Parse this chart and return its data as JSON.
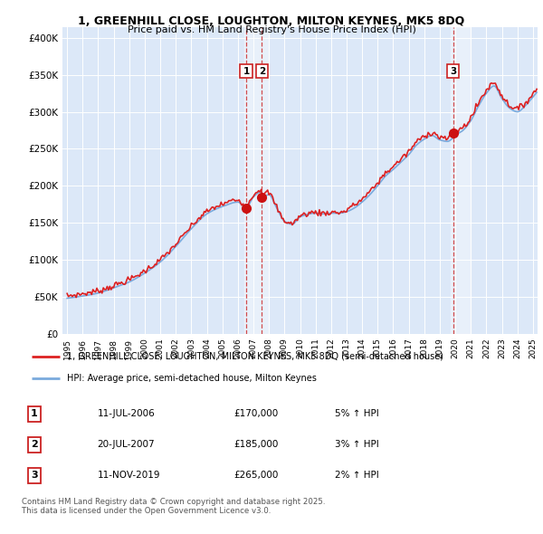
{
  "title_line1": "1, GREENHILL CLOSE, LOUGHTON, MILTON KEYNES, MK5 8DQ",
  "title_line2": "Price paid vs. HM Land Registry's House Price Index (HPI)",
  "bg_color": "#ffffff",
  "plot_bg_color": "#dce8f8",
  "highlight_color": "#c8d8ee",
  "ylabel_ticks": [
    "£0",
    "£50K",
    "£100K",
    "£150K",
    "£200K",
    "£250K",
    "£300K",
    "£350K",
    "£400K"
  ],
  "ytick_values": [
    0,
    50000,
    100000,
    150000,
    200000,
    250000,
    300000,
    350000,
    400000
  ],
  "ylim": [
    0,
    415000
  ],
  "xlim_start": 1994.7,
  "xlim_end": 2025.3,
  "xtick_years": [
    1995,
    1996,
    1997,
    1998,
    1999,
    2000,
    2001,
    2002,
    2003,
    2004,
    2005,
    2006,
    2007,
    2008,
    2009,
    2010,
    2011,
    2012,
    2013,
    2014,
    2015,
    2016,
    2017,
    2018,
    2019,
    2020,
    2021,
    2022,
    2023,
    2024,
    2025
  ],
  "hpi_color": "#7aaadd",
  "price_color": "#dd2222",
  "marker_color": "#cc1111",
  "vline_color": "#cc2222",
  "transactions": [
    {
      "id": 1,
      "date": 2006.53,
      "price": 170000,
      "label": "1"
    },
    {
      "id": 2,
      "date": 2007.55,
      "price": 185000,
      "label": "2"
    },
    {
      "id": 3,
      "date": 2019.87,
      "price": 265000,
      "label": "3"
    }
  ],
  "legend_label_red": "1, GREENHILL CLOSE, LOUGHTON, MILTON KEYNES, MK5 8DQ (semi-detached house)",
  "legend_label_blue": "HPI: Average price, semi-detached house, Milton Keynes",
  "footer_text": "Contains HM Land Registry data © Crown copyright and database right 2025.\nThis data is licensed under the Open Government Licence v3.0.",
  "table_data": [
    {
      "num": "1",
      "date": "11-JUL-2006",
      "price": "£170,000",
      "change": "5% ↑ HPI"
    },
    {
      "num": "2",
      "date": "20-JUL-2007",
      "price": "£185,000",
      "change": "3% ↑ HPI"
    },
    {
      "num": "3",
      "date": "11-NOV-2019",
      "price": "£265,000",
      "change": "2% ↑ HPI"
    }
  ]
}
